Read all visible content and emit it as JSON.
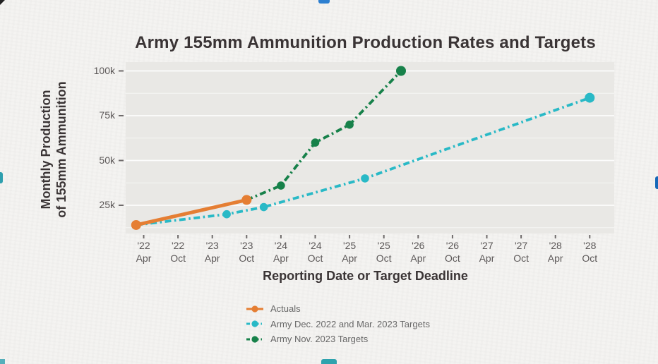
{
  "page": {
    "background_color": "#f4f3f1",
    "plot_background_color": "#e9e8e5"
  },
  "chart_data": {
    "type": "line",
    "title": "Army 155mm Ammunition Production Rates and Targets",
    "xlabel": "Reporting Date or Target Deadline",
    "ylabel_lines": [
      "Monthly Production",
      "of 155mm Ammunition"
    ],
    "y_unit": "thousand rounds per month",
    "x_unit_note": "x = tick index; 0 = Apr '22, each step = 6 months",
    "x_ticks": [
      {
        "year": "'22",
        "month": "Apr"
      },
      {
        "year": "'22",
        "month": "Oct"
      },
      {
        "year": "'23",
        "month": "Apr"
      },
      {
        "year": "'23",
        "month": "Oct"
      },
      {
        "year": "'24",
        "month": "Apr"
      },
      {
        "year": "'24",
        "month": "Oct"
      },
      {
        "year": "'25",
        "month": "Apr"
      },
      {
        "year": "'25",
        "month": "Oct"
      },
      {
        "year": "'26",
        "month": "Apr"
      },
      {
        "year": "'26",
        "month": "Oct"
      },
      {
        "year": "'27",
        "month": "Apr"
      },
      {
        "year": "'27",
        "month": "Oct"
      },
      {
        "year": "'28",
        "month": "Apr"
      },
      {
        "year": "'28",
        "month": "Oct"
      }
    ],
    "y_ticks": [
      {
        "value": 25,
        "label": "25k"
      },
      {
        "value": 50,
        "label": "50k"
      },
      {
        "value": 75,
        "label": "75k"
      },
      {
        "value": 100,
        "label": "100k"
      }
    ],
    "ylim": [
      9,
      105
    ],
    "xlim": [
      -0.52,
      13.7
    ],
    "grid": "horizontal-white-minor-12.5k",
    "legend_position": "below-chart-left",
    "series": [
      {
        "name": "Actuals",
        "color": "#E57E33",
        "style": "solid",
        "points": [
          {
            "x": -0.22,
            "y": 14,
            "date": "Feb '22"
          },
          {
            "x": 3,
            "y": 28,
            "date": "Oct '23"
          }
        ]
      },
      {
        "name": "Army Dec. 2022 and Mar. 2023 Targets",
        "color": "#29B9C6",
        "style": "dashdot",
        "points": [
          {
            "x": -0.22,
            "y": 14,
            "date": "Feb '22"
          },
          {
            "x": 2.42,
            "y": 20,
            "date": "Jul '23"
          },
          {
            "x": 3.5,
            "y": 24,
            "date": "Jan '24"
          },
          {
            "x": 6.45,
            "y": 40,
            "date": "Jul '25"
          },
          {
            "x": 13,
            "y": 85,
            "date": "Oct '28"
          }
        ]
      },
      {
        "name": "Army Nov. 2023 Targets",
        "color": "#17814A",
        "style": "dashdot",
        "points": [
          {
            "x": 3,
            "y": 28,
            "date": "Oct '23"
          },
          {
            "x": 4,
            "y": 36,
            "date": "Apr '24"
          },
          {
            "x": 5,
            "y": 60,
            "date": "Oct '24"
          },
          {
            "x": 6,
            "y": 70,
            "date": "Apr '25"
          },
          {
            "x": 7.5,
            "y": 100,
            "date": "Jan '26"
          }
        ]
      }
    ]
  },
  "artifacts": {
    "top_edge_dash_color": "#2c7fd0",
    "bottom_edge_dash_color": "#2fa3ae",
    "left_edge_dash_color": "#2e9fae",
    "right_edge_dash_color": "#1668b8",
    "corner_mark_color": "#222222"
  }
}
